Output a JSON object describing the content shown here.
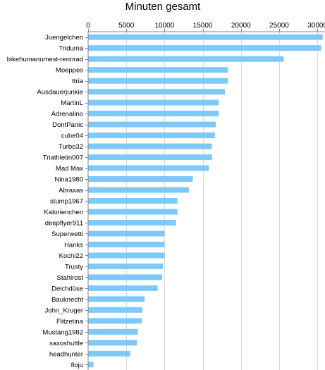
{
  "chart_data": {
    "type": "bar",
    "orientation": "horizontal",
    "title": "Minuten gesamt",
    "xlabel": "",
    "ylabel": "",
    "xlim": [
      0,
      31000
    ],
    "xticks": [
      0,
      5000,
      10000,
      15000,
      20000,
      25000,
      30000
    ],
    "axis_position": "top",
    "grid": "vertical",
    "legend": "none",
    "bar_color": "#7ec8fa",
    "categories": [
      "Juengelchen",
      "Triduma",
      "bikehumanumest-rennrad",
      "Moeppes",
      "ttria",
      "Ausdauerjunkie",
      "MartinL",
      "Adrenalino",
      "DontPanic",
      "cube04",
      "Turbo32",
      "Triathletin007",
      "Mad Max",
      "Nina1980",
      "Abraxas",
      "stump1967",
      "Kalorienchen",
      "deepflyer911",
      "Superwetti",
      "Hanks",
      "Kochi22",
      "Trusty",
      "Stahlrost",
      "Deichdüse",
      "Bauknecht",
      "John_Kruger",
      "Flitzetina",
      "Mustang1982",
      "saxoshuttle",
      "headhunter",
      "floju"
    ],
    "values": [
      30700,
      30500,
      25600,
      18300,
      18300,
      17900,
      17100,
      17100,
      16700,
      16600,
      16200,
      16200,
      15800,
      13700,
      13200,
      11700,
      11700,
      11500,
      10000,
      10000,
      10000,
      9800,
      9700,
      9100,
      7400,
      7100,
      7000,
      6500,
      6400,
      5500,
      700
    ]
  }
}
